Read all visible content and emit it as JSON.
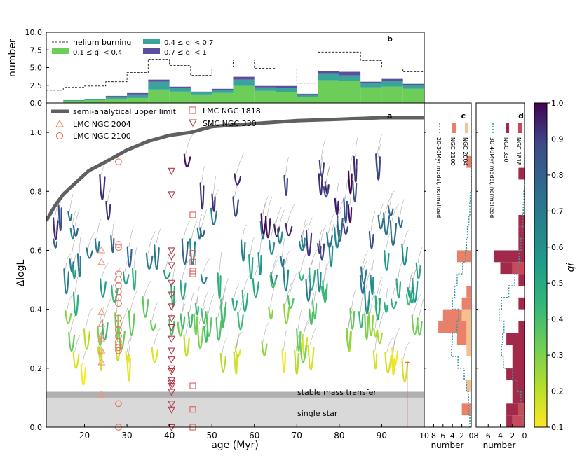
{
  "chart_data": [
    {
      "panel": "a",
      "type": "scatter",
      "xlabel": "age (Myr)",
      "ylabel": "ΔlogL",
      "xlim": [
        11,
        100
      ],
      "ylim": [
        0,
        1.1
      ],
      "xticks": [
        20,
        30,
        40,
        50,
        60,
        70,
        80,
        90
      ],
      "yticks": [
        0.0,
        0.2,
        0.4,
        0.6,
        0.8,
        1.0
      ],
      "band_labels": {
        "stable": "stable mass transfer",
        "single": "single star"
      },
      "bands": {
        "single": [
          0,
          0.1
        ],
        "stable": [
          0.1,
          0.12
        ]
      },
      "legend": {
        "upper_limit": "semi-analytical upper limit",
        "ngc2004": "LMC NGC 2004",
        "ngc2100": "LMC NGC 2100",
        "ngc1818": "LMC NGC 1818",
        "ngc330": "SMC NGC 330"
      },
      "upper_limit": {
        "x": [
          11,
          13,
          15,
          18,
          21,
          25,
          30,
          35,
          40,
          45,
          50,
          60,
          70,
          80,
          90,
          100
        ],
        "y": [
          0.7,
          0.75,
          0.79,
          0.83,
          0.87,
          0.9,
          0.94,
          0.97,
          0.99,
          1.0,
          1.02,
          1.03,
          1.04,
          1.045,
          1.05,
          1.05
        ]
      },
      "ngc2004": {
        "x": 24,
        "y": [
          0.6,
          0.56,
          0.39,
          0.35,
          0.31,
          0.3,
          0.26,
          0.22,
          0.11
        ]
      },
      "ngc2100": {
        "x": 28,
        "y": [
          0.9,
          0.62,
          0.61,
          0.52,
          0.5,
          0.48,
          0.46,
          0.44,
          0.42,
          0.37,
          0.35,
          0.33,
          0.31,
          0.29,
          0.28,
          0.27,
          0.26,
          0.08,
          0.0
        ]
      },
      "ngc330": {
        "x": 40.5,
        "y": [
          0.87,
          0.79,
          0.6,
          0.58,
          0.55,
          0.49,
          0.45,
          0.41,
          0.37,
          0.34,
          0.3,
          0.26,
          0.23,
          0.2,
          0.19,
          0.16,
          0.15,
          0.14,
          0.12,
          0.08,
          0.06,
          0.0
        ]
      },
      "ngc1818": {
        "x": 45.5,
        "y": [
          0.72,
          0.59,
          0.56,
          0.53,
          0.52,
          0.14,
          0.06,
          0.0
        ]
      },
      "errorbar": {
        "x": 96,
        "y": 0.1,
        "low": 0.0,
        "high": 0.22
      }
    },
    {
      "panel": "b",
      "type": "bar",
      "ylabel": "number",
      "ylim": [
        0,
        10
      ],
      "yticks": [
        0.0,
        2.5,
        5.0,
        7.5,
        10.0
      ],
      "bin_edges": [
        15,
        20,
        25,
        30,
        35,
        40,
        45,
        50,
        55,
        60,
        65,
        70,
        75,
        80,
        85,
        90,
        95,
        100
      ],
      "series": [
        {
          "name": "0.1 ≤ qi < 0.4",
          "color": "#6dcd59",
          "values": [
            0.3,
            0.4,
            0.6,
            0.7,
            1.9,
            1.6,
            1.2,
            1.4,
            2.4,
            1.7,
            1.5,
            0.8,
            3.2,
            3.1,
            2.2,
            2.3,
            2.0
          ]
        },
        {
          "name": "0.4 ≤ qi < 0.7",
          "color": "#3aa39a",
          "values": [
            0.1,
            0.1,
            0.3,
            0.5,
            1.1,
            0.5,
            0.3,
            0.4,
            0.9,
            0.5,
            0.6,
            0.4,
            1.0,
            0.8,
            0.6,
            0.8,
            0.5
          ]
        },
        {
          "name": "0.7 ≤ qi < 1",
          "color": "#5a4f9e",
          "values": [
            0.0,
            0.0,
            0.1,
            0.2,
            0.3,
            0.2,
            0.1,
            0.2,
            0.4,
            0.2,
            0.3,
            0.1,
            0.3,
            0.5,
            0.2,
            0.3,
            0.2
          ]
        }
      ],
      "helium_burning": {
        "name": "helium burning",
        "values": [
          2.2,
          2.4,
          3.0,
          4.3,
          6.2,
          5.3,
          3.9,
          5.1,
          6.1,
          4.9,
          4.8,
          2.8,
          7.2,
          7.2,
          6.0,
          5.1,
          4.4
        ],
        "first": 1.8
      }
    },
    {
      "panel": "c",
      "type": "bar",
      "xlabel": "number",
      "xticks": [
        10,
        8,
        6,
        4,
        2,
        0
      ],
      "legend": {
        "model": "20-30Myr model, normalized",
        "ngc2100": "NGC 2100",
        "ngc2004": "NGC 2004"
      },
      "bin_width": 0.04,
      "ngc2100": [
        0,
        2,
        0,
        0,
        0,
        0,
        0,
        2,
        6,
        4,
        2,
        1,
        0,
        0,
        3,
        0,
        0,
        0,
        0,
        0,
        0,
        0,
        1
      ],
      "ngc2004": [
        0,
        0,
        0,
        1,
        0,
        0,
        1,
        1,
        1,
        2,
        0,
        0,
        0,
        0,
        0,
        0,
        0,
        0,
        0,
        0,
        0,
        0,
        0
      ],
      "model": [
        0.3,
        0.6,
        0.6,
        1.0,
        1.5,
        2.8,
        4.2,
        4.0,
        3.0,
        2.7,
        4.0,
        3.5,
        3.0,
        1.8,
        1.2,
        1.0,
        0.8,
        0.5,
        0.3,
        0.2,
        0,
        0,
        0
      ]
    },
    {
      "panel": "d",
      "type": "bar",
      "xlabel": "number",
      "xticks": [
        8,
        6,
        4,
        2,
        0
      ],
      "legend": {
        "model": "30-40Myr model, normalized",
        "ngc330": "NGC 330",
        "ngc1818": "NGC 1818"
      },
      "bin_width": 0.04,
      "ngc330": [
        1,
        2,
        2,
        2,
        3,
        2,
        2,
        3,
        1,
        0,
        1,
        0,
        1,
        2,
        5,
        1,
        1,
        1,
        0,
        0,
        0,
        1,
        0
      ],
      "ngc1818": [
        2,
        1,
        0,
        0,
        0,
        0,
        0,
        0,
        0,
        0,
        0,
        0,
        0,
        2,
        0,
        0,
        0,
        0,
        0,
        0,
        0,
        0,
        0
      ],
      "model": [
        0.3,
        0.4,
        0.6,
        1.2,
        2.0,
        3.5,
        3.8,
        3.6,
        3.4,
        4.2,
        3.8,
        2.6,
        1.6,
        1.2,
        0.9,
        0.6,
        0.4,
        0.3,
        0.2,
        0.1,
        0,
        0,
        0
      ]
    },
    {
      "panel": "colorbar",
      "type": "colorbar",
      "label": "qi",
      "ticks": [
        0.1,
        0.2,
        0.3,
        0.4,
        0.5,
        0.6,
        0.7,
        0.8,
        0.9,
        1.0
      ]
    }
  ]
}
